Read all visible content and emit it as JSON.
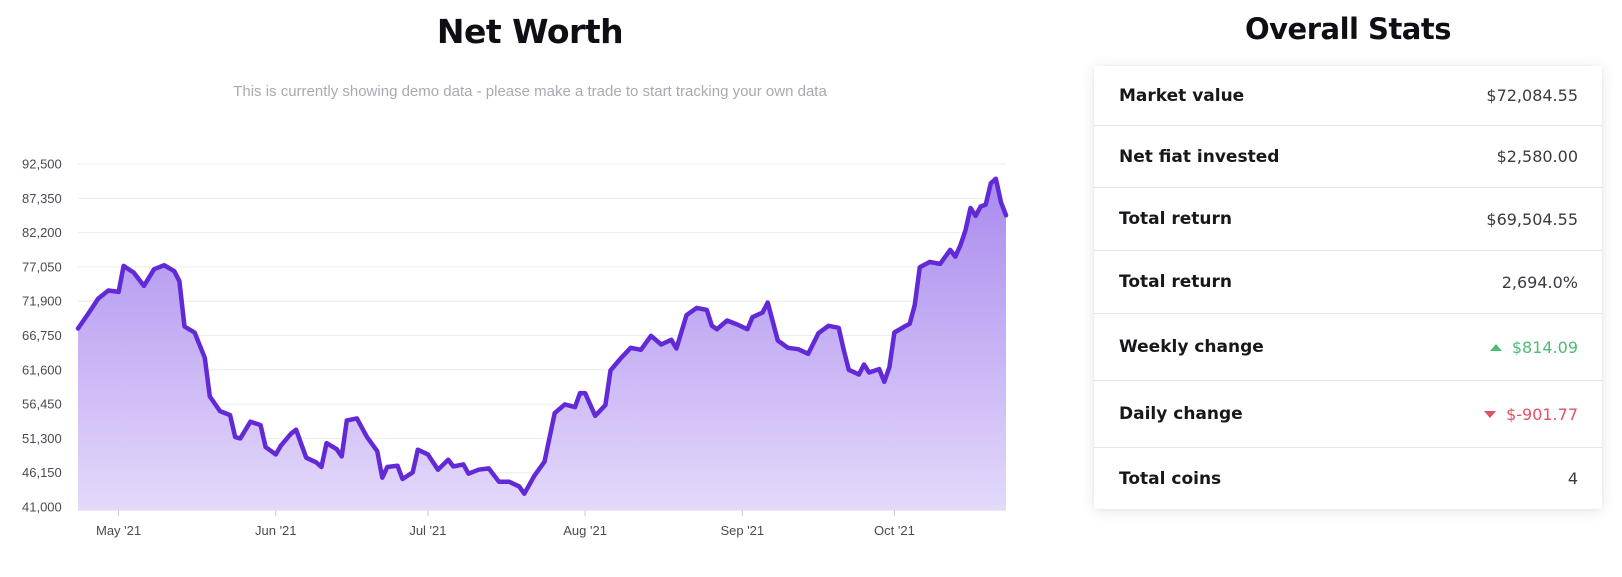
{
  "chart_section": {
    "title": "Net Worth",
    "subtitle": "This is currently showing demo data - please make a trade to start tracking your own data"
  },
  "stats_section": {
    "title": "Overall Stats",
    "rows": [
      {
        "label": "Market value",
        "value": "$72,084.55",
        "trend": "none"
      },
      {
        "label": "Net fiat invested",
        "value": "$2,580.00",
        "trend": "none"
      },
      {
        "label": "Total return",
        "value": "$69,504.55",
        "trend": "none"
      },
      {
        "label": "Total return",
        "value": "2,694.0%",
        "trend": "none"
      },
      {
        "label": "Weekly change",
        "value": "$814.09",
        "trend": "up"
      },
      {
        "label": "Daily change",
        "value": "$-901.77",
        "trend": "down"
      },
      {
        "label": "Total coins",
        "value": "4",
        "trend": "none"
      }
    ]
  },
  "colors": {
    "line": "#6229d6",
    "fill_top": "#a98bee",
    "fill_bottom": "#e4d9fb",
    "positive": "#4dbd74",
    "negative": "#e05263"
  },
  "chart_data": {
    "type": "area",
    "title": "",
    "xlabel": "",
    "ylabel": "",
    "ylim": [
      41000,
      92500
    ],
    "y_ticks": [
      "92,500",
      "87,350",
      "82,200",
      "77,050",
      "71,900",
      "66,750",
      "61,600",
      "56,450",
      "51,300",
      "46,150",
      "41,000"
    ],
    "x_ticks": [
      {
        "label": "May '21",
        "date": "2021-05-01"
      },
      {
        "label": "Jun '21",
        "date": "2021-06-01"
      },
      {
        "label": "Jul '21",
        "date": "2021-07-01"
      },
      {
        "label": "Aug '21",
        "date": "2021-08-01"
      },
      {
        "label": "Sep '21",
        "date": "2021-09-01"
      },
      {
        "label": "Oct '21",
        "date": "2021-10-01"
      }
    ],
    "grid": true,
    "legend": "none",
    "series": [
      {
        "points": [
          [
            "2021-04-23",
            67800
          ],
          [
            "2021-04-25",
            70000
          ],
          [
            "2021-04-27",
            72300
          ],
          [
            "2021-04-29",
            73500
          ],
          [
            "2021-05-01",
            73300
          ],
          [
            "2021-05-02",
            77200
          ],
          [
            "2021-05-04",
            76200
          ],
          [
            "2021-05-06",
            74200
          ],
          [
            "2021-05-08",
            76700
          ],
          [
            "2021-05-10",
            77300
          ],
          [
            "2021-05-12",
            76400
          ],
          [
            "2021-05-13",
            74900
          ],
          [
            "2021-05-14",
            68100
          ],
          [
            "2021-05-16",
            67200
          ],
          [
            "2021-05-18",
            63400
          ],
          [
            "2021-05-19",
            57600
          ],
          [
            "2021-05-21",
            55400
          ],
          [
            "2021-05-23",
            54800
          ],
          [
            "2021-05-24",
            51500
          ],
          [
            "2021-05-25",
            51300
          ],
          [
            "2021-05-27",
            53800
          ],
          [
            "2021-05-29",
            53300
          ],
          [
            "2021-05-30",
            50000
          ],
          [
            "2021-06-01",
            48900
          ],
          [
            "2021-06-02",
            50200
          ],
          [
            "2021-06-04",
            52000
          ],
          [
            "2021-06-05",
            52600
          ],
          [
            "2021-06-07",
            48400
          ],
          [
            "2021-06-09",
            47700
          ],
          [
            "2021-06-10",
            47000
          ],
          [
            "2021-06-11",
            50600
          ],
          [
            "2021-06-13",
            49700
          ],
          [
            "2021-06-14",
            48600
          ],
          [
            "2021-06-15",
            54000
          ],
          [
            "2021-06-17",
            54300
          ],
          [
            "2021-06-19",
            51500
          ],
          [
            "2021-06-21",
            49400
          ],
          [
            "2021-06-22",
            45400
          ],
          [
            "2021-06-23",
            47000
          ],
          [
            "2021-06-25",
            47200
          ],
          [
            "2021-06-26",
            45200
          ],
          [
            "2021-06-28",
            46200
          ],
          [
            "2021-06-29",
            49600
          ],
          [
            "2021-07-01",
            48900
          ],
          [
            "2021-07-03",
            46600
          ],
          [
            "2021-07-05",
            48100
          ],
          [
            "2021-07-06",
            47100
          ],
          [
            "2021-07-08",
            47400
          ],
          [
            "2021-07-09",
            46000
          ],
          [
            "2021-07-11",
            46600
          ],
          [
            "2021-07-13",
            46800
          ],
          [
            "2021-07-15",
            44800
          ],
          [
            "2021-07-17",
            44800
          ],
          [
            "2021-07-19",
            44100
          ],
          [
            "2021-07-20",
            43000
          ],
          [
            "2021-07-22",
            45700
          ],
          [
            "2021-07-24",
            47800
          ],
          [
            "2021-07-26",
            55100
          ],
          [
            "2021-07-28",
            56400
          ],
          [
            "2021-07-30",
            56000
          ],
          [
            "2021-07-31",
            58100
          ],
          [
            "2021-08-01",
            58100
          ],
          [
            "2021-08-03",
            54700
          ],
          [
            "2021-08-05",
            56300
          ],
          [
            "2021-08-06",
            61500
          ],
          [
            "2021-08-08",
            63300
          ],
          [
            "2021-08-10",
            64900
          ],
          [
            "2021-08-12",
            64600
          ],
          [
            "2021-08-14",
            66700
          ],
          [
            "2021-08-16",
            65400
          ],
          [
            "2021-08-18",
            66100
          ],
          [
            "2021-08-19",
            64800
          ],
          [
            "2021-08-21",
            69800
          ],
          [
            "2021-08-23",
            70900
          ],
          [
            "2021-08-25",
            70600
          ],
          [
            "2021-08-26",
            68200
          ],
          [
            "2021-08-27",
            67700
          ],
          [
            "2021-08-29",
            69000
          ],
          [
            "2021-08-31",
            68400
          ],
          [
            "2021-09-02",
            67700
          ],
          [
            "2021-09-03",
            69500
          ],
          [
            "2021-09-05",
            70200
          ],
          [
            "2021-09-06",
            71700
          ],
          [
            "2021-09-08",
            66000
          ],
          [
            "2021-09-10",
            64900
          ],
          [
            "2021-09-12",
            64700
          ],
          [
            "2021-09-14",
            64000
          ],
          [
            "2021-09-16",
            67100
          ],
          [
            "2021-09-18",
            68200
          ],
          [
            "2021-09-20",
            67900
          ],
          [
            "2021-09-21",
            64600
          ],
          [
            "2021-09-22",
            61600
          ],
          [
            "2021-09-24",
            60900
          ],
          [
            "2021-09-25",
            62400
          ],
          [
            "2021-09-26",
            61200
          ],
          [
            "2021-09-28",
            61700
          ],
          [
            "2021-09-29",
            59800
          ],
          [
            "2021-09-30",
            62000
          ],
          [
            "2021-10-01",
            67200
          ],
          [
            "2021-10-03",
            68100
          ],
          [
            "2021-10-04",
            68500
          ],
          [
            "2021-10-05",
            71300
          ],
          [
            "2021-10-06",
            77000
          ],
          [
            "2021-10-08",
            77800
          ],
          [
            "2021-10-10",
            77500
          ],
          [
            "2021-10-12",
            79600
          ],
          [
            "2021-10-13",
            78600
          ],
          [
            "2021-10-14",
            80300
          ],
          [
            "2021-10-15",
            82500
          ],
          [
            "2021-10-16",
            85900
          ],
          [
            "2021-10-17",
            84700
          ],
          [
            "2021-10-18",
            86100
          ],
          [
            "2021-10-19",
            86400
          ],
          [
            "2021-10-20",
            89600
          ],
          [
            "2021-10-21",
            90300
          ],
          [
            "2021-10-22",
            86800
          ],
          [
            "2021-10-23",
            84800
          ]
        ]
      }
    ]
  }
}
